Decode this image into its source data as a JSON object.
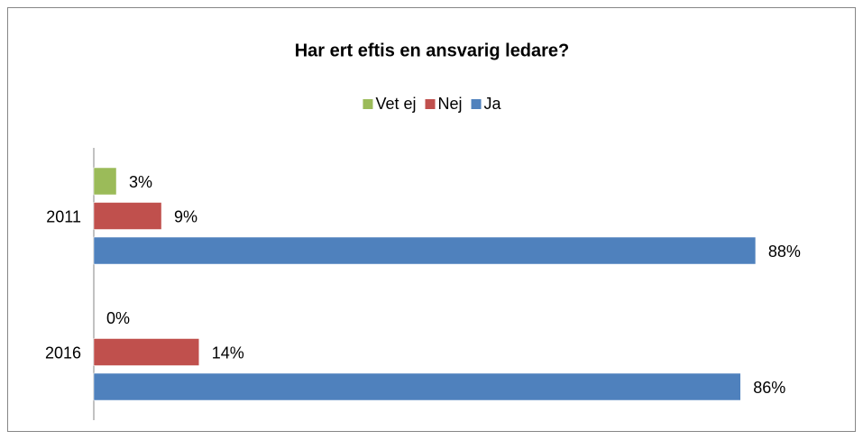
{
  "chart_data": {
    "type": "hbar",
    "title": "Har ert eftis en ansvarig ledare?",
    "categories": [
      "2011",
      "2016"
    ],
    "series": [
      {
        "name": "Vet ej",
        "color": "#9bbb59",
        "values": [
          3,
          0
        ],
        "value_labels": [
          "3%",
          "0%"
        ]
      },
      {
        "name": "Nej",
        "color": "#c0504d",
        "values": [
          9,
          14
        ],
        "value_labels": [
          "9%",
          "14%"
        ]
      },
      {
        "name": "Ja",
        "color": "#4f81bd",
        "values": [
          88,
          86
        ],
        "value_labels": [
          "88%",
          "86%"
        ]
      }
    ],
    "xlim": [
      0,
      100
    ],
    "legend": "top"
  }
}
